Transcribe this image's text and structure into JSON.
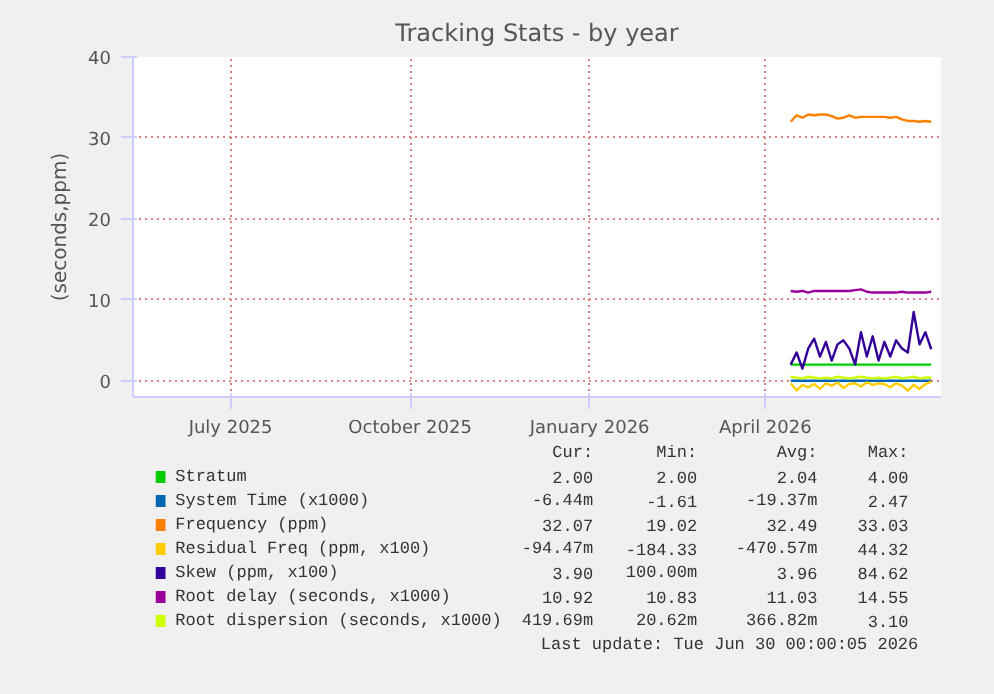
{
  "chart_data": {
    "type": "line",
    "title": "Tracking Stats - by year",
    "ylabel": "(seconds,ppm)",
    "x": [
      "2026-04-14",
      "2026-04-17",
      "2026-04-20",
      "2026-04-23",
      "2026-04-26",
      "2026-04-29",
      "2026-05-02",
      "2026-05-05",
      "2026-05-08",
      "2026-05-11",
      "2026-05-14",
      "2026-05-17",
      "2026-05-20",
      "2026-05-23",
      "2026-05-26",
      "2026-05-29",
      "2026-06-01",
      "2026-06-04",
      "2026-06-07",
      "2026-06-10",
      "2026-06-13",
      "2026-06-16",
      "2026-06-19",
      "2026-06-22",
      "2026-06-25"
    ],
    "xlim": [
      "2025-05-12",
      "2026-06-30"
    ],
    "xticks": [
      {
        "value": "2025-07-01",
        "label": "July 2025"
      },
      {
        "value": "2025-10-01",
        "label": "October 2025"
      },
      {
        "value": "2026-01-01",
        "label": "January 2026"
      },
      {
        "value": "2026-04-01",
        "label": "April 2026"
      }
    ],
    "ylim": [
      -2,
      40
    ],
    "yticks": [
      0,
      10,
      20,
      30,
      40
    ],
    "grid": true,
    "legend": "bottom",
    "series": [
      {
        "name": "Stratum",
        "color": "#00cc00",
        "values": [
          2,
          2,
          2,
          2,
          2,
          2,
          2,
          2,
          2,
          2,
          2,
          2,
          2,
          2,
          2,
          2,
          2,
          2,
          2,
          2,
          2,
          2,
          2,
          2,
          2
        ]
      },
      {
        "name": "System Time (x1000)",
        "color": "#0066b3",
        "values": [
          0,
          0,
          0,
          0,
          0,
          0,
          0,
          0,
          0,
          0,
          0,
          0,
          0,
          0,
          0,
          0,
          0,
          0,
          0,
          0,
          0,
          0,
          0,
          0,
          0
        ]
      },
      {
        "name": "Frequency (ppm)",
        "color": "#ff8000",
        "values": [
          32.0,
          32.8,
          32.5,
          32.9,
          32.8,
          32.9,
          32.9,
          32.7,
          32.4,
          32.5,
          32.8,
          32.5,
          32.6,
          32.6,
          32.6,
          32.6,
          32.6,
          32.5,
          32.6,
          32.3,
          32.1,
          32.1,
          32.0,
          32.1,
          32.0
        ]
      },
      {
        "name": "Residual Freq (ppm, x100)",
        "color": "#ffcc00",
        "values": [
          -0.3,
          -1.2,
          -0.5,
          -0.8,
          -0.4,
          -1.0,
          -0.3,
          -0.6,
          -0.2,
          -0.9,
          -0.4,
          -0.3,
          -0.7,
          -0.2,
          -0.5,
          -0.3,
          -0.4,
          -0.8,
          -0.3,
          -0.6,
          -1.2,
          -0.5,
          -1.0,
          -0.4,
          -0.1
        ]
      },
      {
        "name": "Skew (ppm, x100)",
        "color": "#330099",
        "values": [
          2.0,
          3.5,
          1.5,
          4.0,
          5.2,
          3.0,
          4.8,
          2.5,
          4.5,
          5.0,
          4.0,
          2.0,
          6.0,
          3.0,
          5.5,
          2.5,
          4.8,
          3.0,
          5.0,
          4.0,
          3.5,
          8.5,
          4.5,
          6.0,
          3.9
        ]
      },
      {
        "name": "Root delay (seconds, x1000)",
        "color": "#990099",
        "values": [
          11.1,
          11.0,
          11.1,
          10.9,
          11.1,
          11.1,
          11.1,
          11.1,
          11.1,
          11.1,
          11.1,
          11.2,
          11.3,
          11.0,
          10.9,
          10.9,
          10.9,
          10.9,
          10.9,
          11.0,
          10.9,
          10.9,
          10.9,
          10.9,
          11.0
        ]
      },
      {
        "name": "Root dispersion (seconds, x1000)",
        "color": "#ccff00",
        "values": [
          0.5,
          0.4,
          0.3,
          0.5,
          0.4,
          0.3,
          0.4,
          0.3,
          0.5,
          0.4,
          0.3,
          0.4,
          0.5,
          0.4,
          0.3,
          0.4,
          0.3,
          0.4,
          0.5,
          0.3,
          0.4,
          0.5,
          0.3,
          0.4,
          0.4
        ]
      }
    ],
    "annotations": [
      "      Cur:      Min:      Avg:      Max:",
      "      2.00      2.00      2.04      4.00",
      "    -6.44m     -1.61   -19.37m      2.47",
      "     32.07     19.02     32.49     33.03",
      "   -94.47m   -184.33  -470.57m     44.32",
      "      3.90   100.00m      3.96     84.62",
      "     10.92     10.83     11.03     14.55",
      "   419.69m    20.62m   366.82m      3.10",
      "Last update: Tue Jun 30 00:00:05 2026"
    ]
  }
}
